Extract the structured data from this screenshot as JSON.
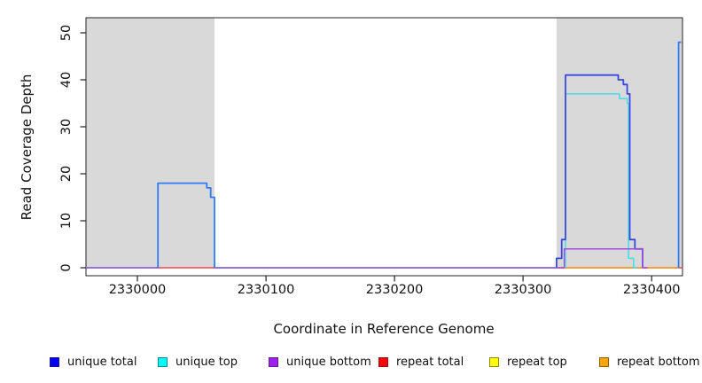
{
  "chart_data": {
    "type": "line",
    "title": "",
    "xlabel": "Coordinate in Reference Genome",
    "ylabel": "Read Coverage Depth",
    "xlim": [
      2329960,
      2330424
    ],
    "ylim": [
      0,
      53
    ],
    "x_ticks": [
      2330000,
      2330100,
      2330200,
      2330300,
      2330400
    ],
    "y_ticks": [
      0,
      10,
      20,
      30,
      40,
      50
    ],
    "grid": false,
    "legend_position": "bottom",
    "region_color": "#D9D9D9",
    "highlight_regions": [
      [
        2329960,
        2330060
      ],
      [
        2330326,
        2330424
      ]
    ],
    "steps_format": "[genome_coordinate, coverage_value] ; value holds until next listed coordinate",
    "series": [
      {
        "name": "unique total",
        "color": "#0000FF",
        "steps": [
          [
            2329960,
            0
          ],
          [
            2330016,
            18
          ],
          [
            2330054,
            17
          ],
          [
            2330057,
            15
          ],
          [
            2330060,
            0
          ],
          [
            2330326,
            2
          ],
          [
            2330330,
            6
          ],
          [
            2330333,
            41
          ],
          [
            2330374,
            40
          ],
          [
            2330378,
            39
          ],
          [
            2330381,
            37
          ],
          [
            2330383,
            6
          ],
          [
            2330387,
            4
          ],
          [
            2330393,
            0
          ],
          [
            2330421,
            48
          ]
        ]
      },
      {
        "name": "unique top",
        "color": "#00FFFF",
        "steps": [
          [
            2329960,
            0
          ],
          [
            2330333,
            37
          ],
          [
            2330375,
            36
          ],
          [
            2330381,
            35
          ],
          [
            2330382,
            2
          ],
          [
            2330386,
            0
          ]
        ]
      },
      {
        "name": "unique bottom",
        "color": "#A020F0",
        "steps": [
          [
            2329960,
            0
          ],
          [
            2330332,
            4
          ],
          [
            2330393,
            0
          ]
        ]
      },
      {
        "name": "repeat total",
        "color": "#FF0000",
        "steps": [
          [
            2329960,
            0
          ]
        ]
      },
      {
        "name": "repeat top",
        "color": "#FFFF00",
        "steps": [
          [
            2329960,
            0
          ]
        ]
      },
      {
        "name": "repeat bottom",
        "color": "#FFA500",
        "steps": [
          [
            2329960,
            0
          ]
        ]
      }
    ],
    "render_paths": [
      {
        "name": "repeat-total-baseline",
        "color": "#FF4050",
        "width": 1.5,
        "points": [
          [
            2329960,
            0
          ],
          [
            2330424,
            0
          ]
        ]
      },
      {
        "name": "repeat-bottom-baseline",
        "color": "#FFA01E",
        "width": 1.6,
        "points": [
          [
            2330328,
            0
          ],
          [
            2330421,
            0
          ]
        ]
      },
      {
        "name": "unique-baseline-left",
        "color": "#7468F0",
        "width": 1.6,
        "points": [
          [
            2329960,
            0
          ],
          [
            2330016,
            0
          ]
        ]
      },
      {
        "name": "unique-baseline-middle",
        "color": "#7468F0",
        "width": 1.6,
        "points": [
          [
            2330060,
            0
          ],
          [
            2330326,
            0
          ]
        ]
      },
      {
        "name": "unique-total-left-peak",
        "color": "#2E7CFA",
        "width": 1.8,
        "points": [
          [
            2330016,
            0
          ],
          [
            2330016,
            18
          ],
          [
            2330054,
            18
          ],
          [
            2330054,
            17
          ],
          [
            2330057,
            17
          ],
          [
            2330057,
            15
          ],
          [
            2330060,
            15
          ],
          [
            2330060,
            0
          ]
        ]
      },
      {
        "name": "unique-top-right-peak",
        "color": "#45DDE8",
        "width": 1.5,
        "points": [
          [
            2330333,
            0
          ],
          [
            2330333,
            37
          ],
          [
            2330375,
            37
          ],
          [
            2330375,
            36
          ],
          [
            2330381,
            36
          ],
          [
            2330381,
            35
          ],
          [
            2330382,
            35
          ],
          [
            2330382,
            2
          ],
          [
            2330386,
            2
          ],
          [
            2330386,
            0
          ],
          [
            2330389,
            0
          ]
        ]
      },
      {
        "name": "unique-total-right-peak",
        "color": "#3B48E0",
        "width": 1.8,
        "points": [
          [
            2330326,
            0
          ],
          [
            2330326,
            2
          ],
          [
            2330330,
            2
          ],
          [
            2330330,
            6
          ],
          [
            2330333,
            6
          ],
          [
            2330333,
            41
          ],
          [
            2330374,
            41
          ],
          [
            2330374,
            40
          ],
          [
            2330378,
            40
          ],
          [
            2330378,
            39
          ],
          [
            2330381,
            39
          ],
          [
            2330381,
            37
          ],
          [
            2330383,
            37
          ],
          [
            2330383,
            6
          ],
          [
            2330387,
            6
          ],
          [
            2330387,
            4
          ],
          [
            2330393,
            4
          ],
          [
            2330393,
            0
          ]
        ]
      },
      {
        "name": "unique-total-right-spike",
        "color": "#2E7CFA",
        "width": 1.8,
        "points": [
          [
            2330421,
            0
          ],
          [
            2330421,
            48
          ],
          [
            2330423,
            48
          ]
        ]
      },
      {
        "name": "unique-bottom-right-peak",
        "color": "#A24BE0",
        "width": 1.5,
        "points": [
          [
            2330326,
            0
          ],
          [
            2330332,
            0
          ],
          [
            2330332,
            4
          ],
          [
            2330393,
            4
          ],
          [
            2330393,
            0
          ],
          [
            2330397,
            0
          ]
        ]
      }
    ],
    "legend": [
      {
        "label": "unique total",
        "color": "#0000FF"
      },
      {
        "label": "unique top",
        "color": "#00FFFF"
      },
      {
        "label": "unique bottom",
        "color": "#A020F0"
      },
      {
        "label": "repeat total",
        "color": "#FF0000"
      },
      {
        "label": "repeat top",
        "color": "#FFFF00"
      },
      {
        "label": "repeat bottom",
        "color": "#FFA500"
      }
    ]
  }
}
